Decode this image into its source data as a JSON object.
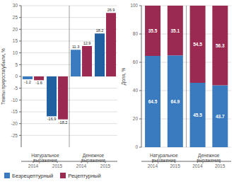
{
  "chart_data": [
    {
      "type": "bar",
      "ylabel": "Темпы прироста/убыли, %",
      "categories": [
        "2014",
        "2015",
        "2014",
        "2015"
      ],
      "annotations": [
        "Натуральное\nвыражение",
        "Денежное\nвыражение"
      ],
      "series": [
        {
          "name": "Безрецептурный",
          "color": "#3a7abf",
          "colors": [
            "#3a7abf",
            "#2060a0",
            "#3a7abf",
            "#2060a0"
          ],
          "values": [
            -1.2,
            -16.9,
            11.3,
            18.2
          ]
        },
        {
          "name": "Рецептурный",
          "color": "#9b2a52",
          "values": [
            -1.6,
            -18.2,
            12.9,
            26.9
          ]
        }
      ],
      "ylim": [
        -30,
        30
      ],
      "yticks": [
        -25,
        -20,
        -15,
        -10,
        -5,
        0,
        5,
        10,
        15,
        20,
        25,
        30
      ],
      "grid": true,
      "data_labels": true,
      "legend": "lower left"
    },
    {
      "type": "bar",
      "stacked": true,
      "ylabel": "Доля, %",
      "categories": [
        "2014",
        "2015",
        "2014",
        "2015"
      ],
      "annotations": [
        "Натуральное\nвыражение",
        "Денежное\nвыражение"
      ],
      "series": [
        {
          "name": "Безрецептурный",
          "color": "#3a7abf",
          "values": [
            64.5,
            64.9,
            45.5,
            43.7
          ]
        },
        {
          "name": "Рецептурный",
          "color": "#9b2a52",
          "values": [
            35.5,
            35.1,
            54.5,
            56.3
          ]
        }
      ],
      "ylim": [
        0,
        100
      ],
      "yticks": [
        0,
        20,
        40,
        60,
        80,
        100
      ],
      "grid": true,
      "data_labels": true
    }
  ]
}
